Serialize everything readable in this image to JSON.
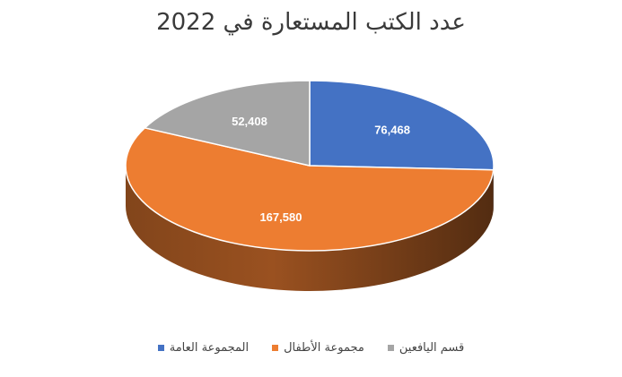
{
  "chart_data": {
    "type": "pie",
    "title": "عدد الكتب المستعارة في 2022",
    "labels": [
      "المجموعة العامة",
      "مجموعة الأطفال",
      "قسم اليافعين"
    ],
    "values": [
      76468,
      167580,
      52408
    ],
    "value_labels": [
      "76,468",
      "167,580",
      "52,408"
    ],
    "colors": [
      "#4472C4",
      "#ED7D31",
      "#A5A5A5"
    ],
    "legend_position": "bottom",
    "style": "3d"
  }
}
